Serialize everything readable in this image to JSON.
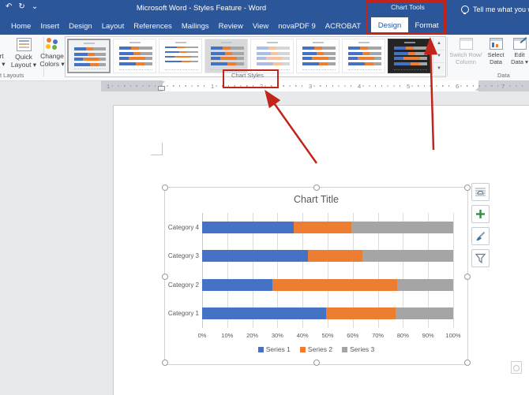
{
  "titlebar": {
    "title": "Microsoft Word - Styles Feature  -  Word",
    "context_header": "Chart Tools"
  },
  "qat": {
    "icons": [
      "undo-icon",
      "redo-icon",
      "customize-qat-icon"
    ]
  },
  "tabs": {
    "main": [
      "Home",
      "Insert",
      "Design",
      "Layout",
      "References",
      "Mailings",
      "Review",
      "View",
      "novaPDF 9",
      "ACROBAT"
    ],
    "contextual": [
      {
        "label": "Design",
        "selected": true
      },
      {
        "label": "Format",
        "selected": false
      }
    ],
    "tell_me": "Tell me what you want t"
  },
  "ribbon": {
    "clipped_button": {
      "line1": "rt",
      "line2": "t ▾"
    },
    "quick_layout": {
      "line1": "Quick",
      "line2": "Layout ▾"
    },
    "change_colors": {
      "line1": "Change",
      "line2": "Colors ▾"
    },
    "group_labels": {
      "layouts": "t Layouts",
      "chart_styles": "Chart Styles",
      "data": "Data"
    },
    "gallery": {
      "styles": [
        {
          "name": "Style 1",
          "selected": true,
          "variant": "light"
        },
        {
          "name": "Style 2",
          "selected": false,
          "variant": "bold"
        },
        {
          "name": "Style 3",
          "selected": false,
          "variant": "thin"
        },
        {
          "name": "Style 4",
          "selected": false,
          "variant": "gray"
        },
        {
          "name": "Style 5",
          "selected": false,
          "variant": "pale"
        },
        {
          "name": "Style 6",
          "selected": false,
          "variant": "light"
        },
        {
          "name": "Style 7",
          "selected": false,
          "variant": "light"
        },
        {
          "name": "Style 8",
          "selected": false,
          "variant": "dark"
        }
      ],
      "scroll_icons": [
        "scroll-up-icon",
        "scroll-down-icon",
        "gallery-more-icon"
      ]
    },
    "data_group": {
      "switch_row_column": {
        "line1": "Switch Row/",
        "line2": "Column",
        "enabled": false
      },
      "select_data": {
        "line1": "Select",
        "line2": "Data",
        "enabled": true
      },
      "edit_data": {
        "line1": "Edit",
        "line2": "Data ▾",
        "enabled": true
      }
    }
  },
  "ruler": {
    "left_number": "1",
    "numbers": [
      "1",
      "2",
      "3",
      "4",
      "5",
      "6"
    ],
    "right_number": "7"
  },
  "chart_data": {
    "type": "bar",
    "orientation": "horizontal",
    "stacking": "percent",
    "title": "Chart Title",
    "categories": [
      "Category 1",
      "Category 2",
      "Category 3",
      "Category 4"
    ],
    "series": [
      {
        "name": "Series 1",
        "color": "#4472C4",
        "values": [
          4.3,
          2.5,
          3.5,
          4.5
        ]
      },
      {
        "name": "Series 2",
        "color": "#ED7D31",
        "values": [
          2.4,
          4.4,
          1.8,
          2.8
        ]
      },
      {
        "name": "Series 3",
        "color": "#A5A5A5",
        "values": [
          2.0,
          2.0,
          3.0,
          5.0
        ]
      }
    ],
    "segment_percentages_by_row_top_to_bottom": [
      [
        36.6,
        22.8,
        40.7
      ],
      [
        42.2,
        21.7,
        36.1
      ],
      [
        28.1,
        49.4,
        22.5
      ],
      [
        49.4,
        27.6,
        23.0
      ]
    ],
    "x_ticks": [
      "0%",
      "10%",
      "20%",
      "30%",
      "40%",
      "50%",
      "60%",
      "70%",
      "80%",
      "90%",
      "100%"
    ],
    "xlim": [
      0,
      100
    ],
    "grid": true,
    "legend_position": "bottom"
  },
  "side_buttons": [
    "layout-options-icon",
    "chart-elements-plus-icon",
    "chart-styles-brush-icon",
    "chart-filters-funnel-icon"
  ],
  "colors": {
    "accent_red": "#C0241B",
    "titlebar_blue": "#2B579A",
    "contextual_blue": "#3F6DB3",
    "series1_blue": "#4472C4",
    "series2_orange": "#ED7D31",
    "series3_gray": "#A5A5A5"
  }
}
